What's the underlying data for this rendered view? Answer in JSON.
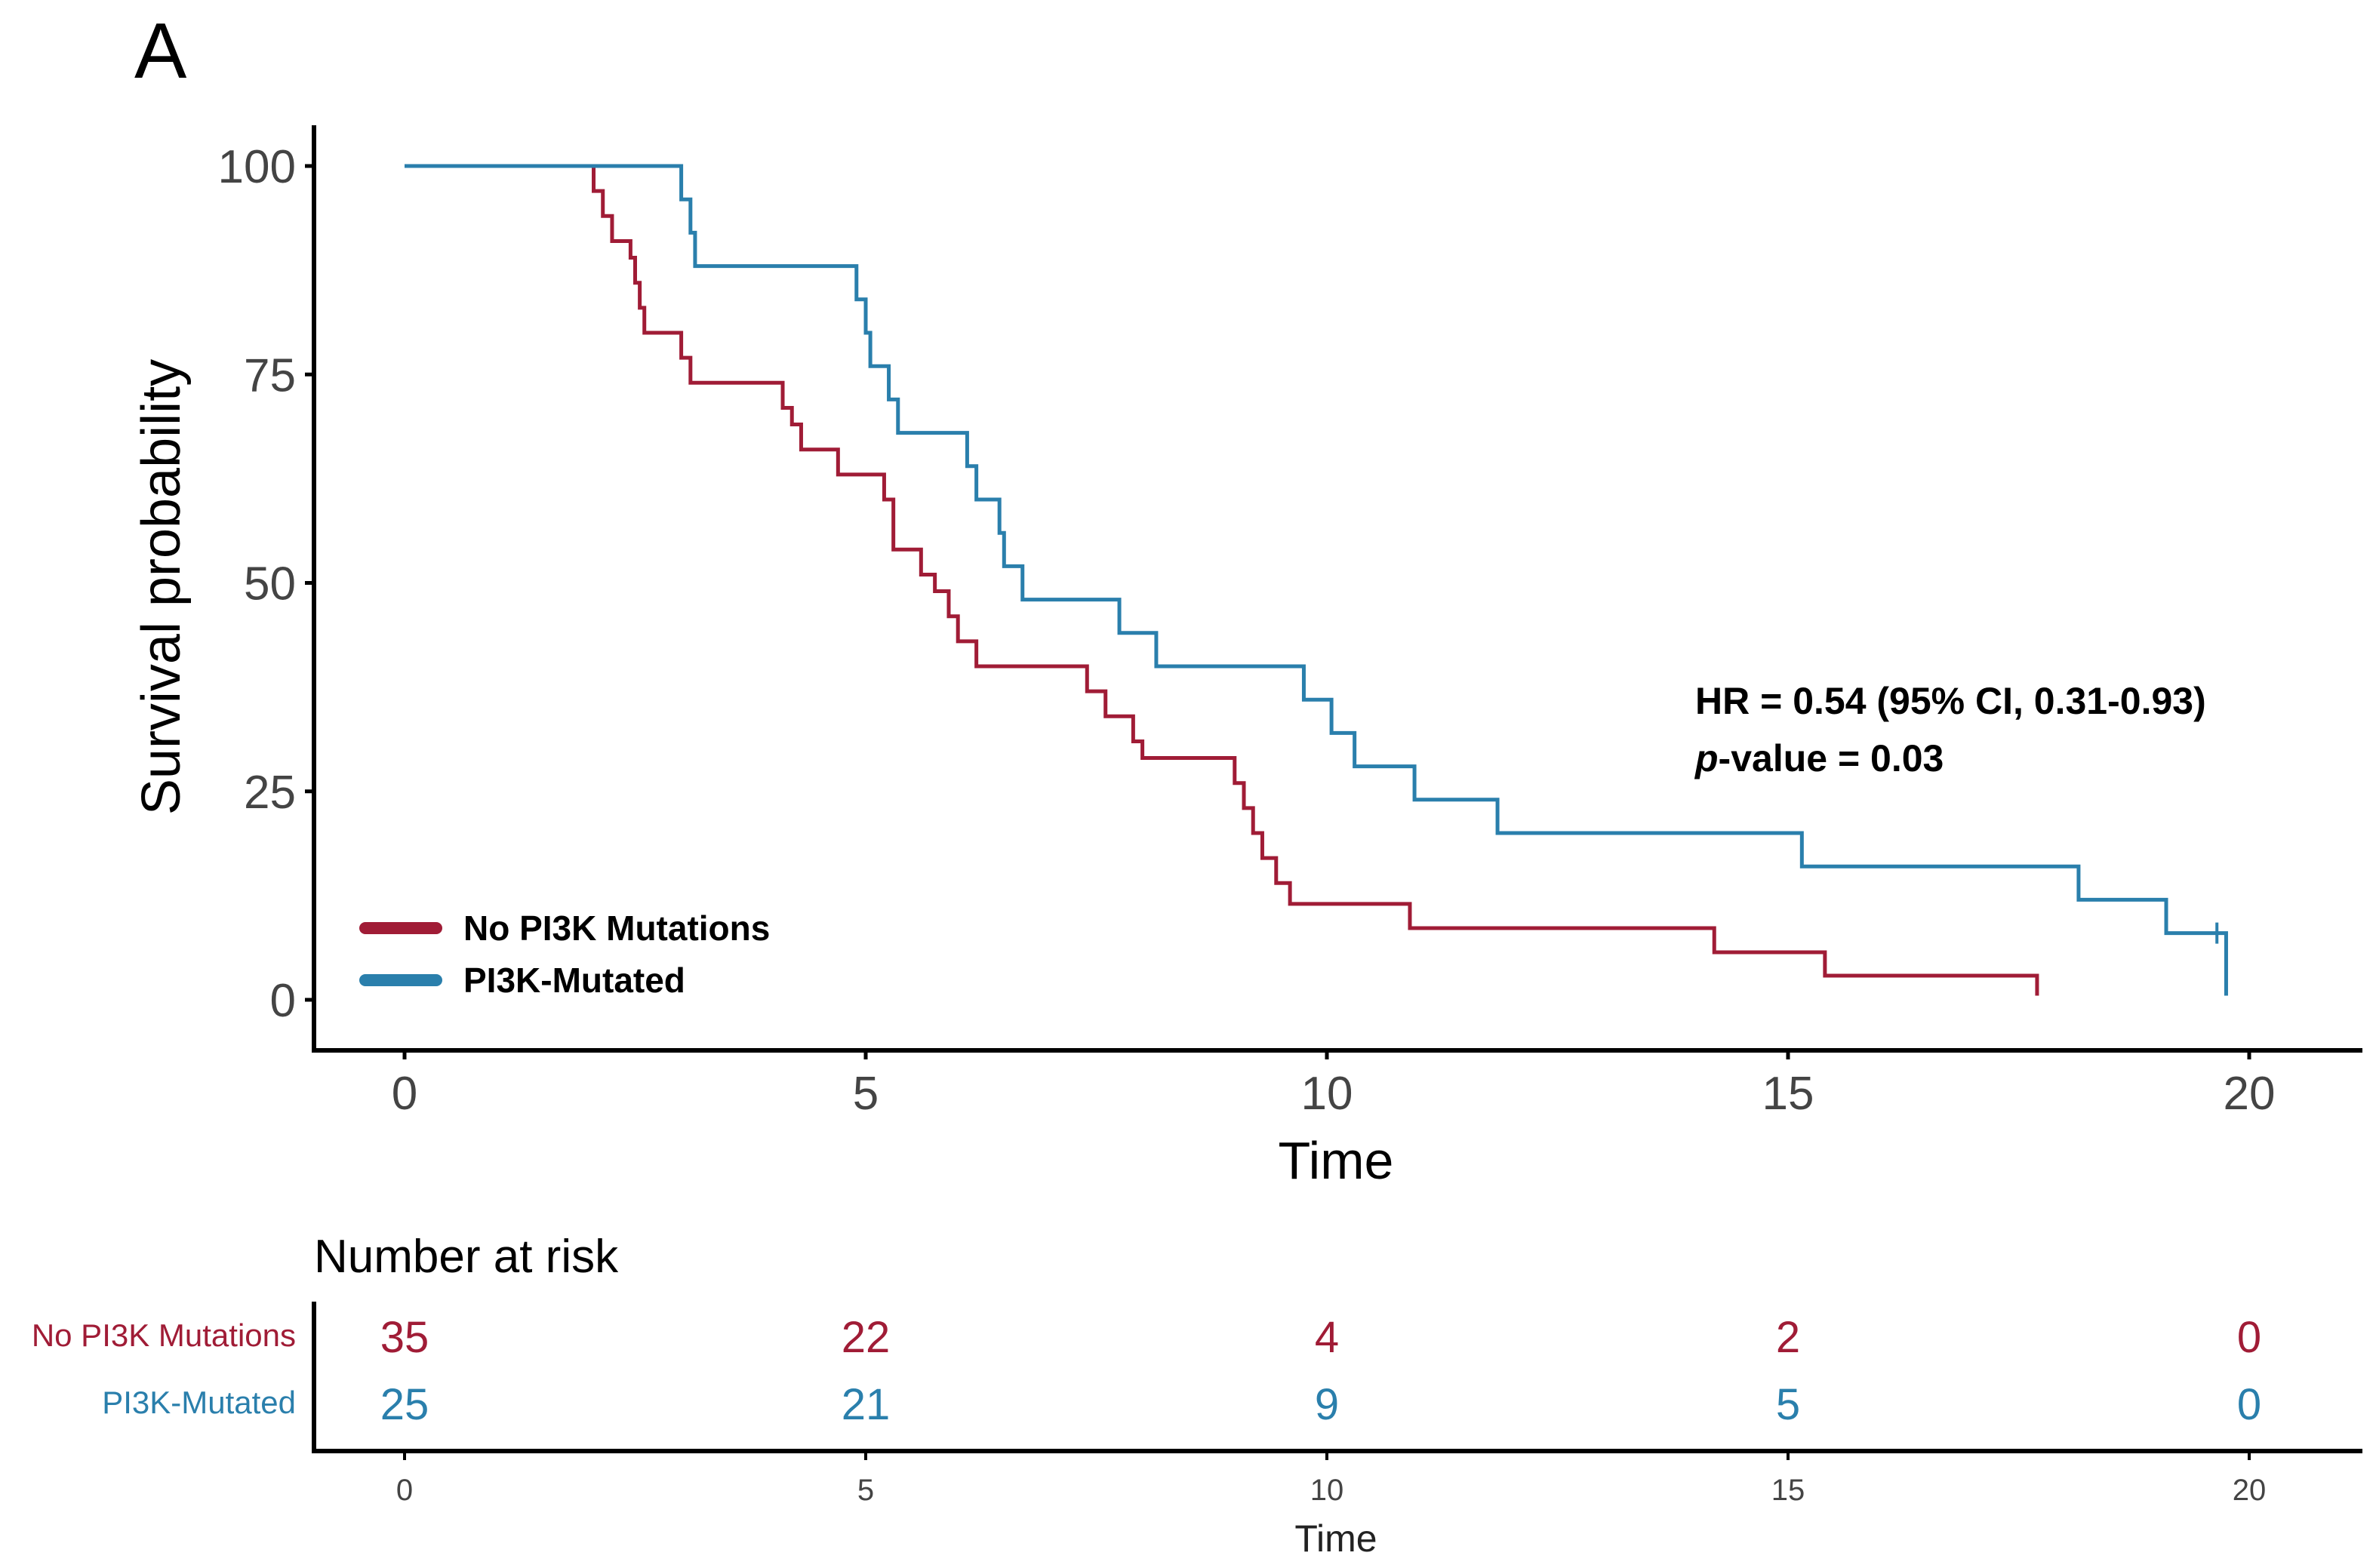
{
  "panel_label": "A",
  "chart_data": {
    "type": "km-survival",
    "xlabel": "Time",
    "ylabel": "Survival probability",
    "xlim": [
      0,
      20
    ],
    "ylim": [
      0,
      100
    ],
    "x_ticks": [
      "0",
      "5",
      "10",
      "15",
      "20"
    ],
    "y_ticks": [
      "0",
      "25",
      "50",
      "75",
      "100"
    ],
    "annotation": {
      "hr": "HR  = 0.54 (95% CI, 0.31-0.93)",
      "p_italic": "p",
      "p_rest": "-value = 0.03"
    },
    "legend": {
      "position": "bottom-left"
    },
    "series": [
      {
        "name": "No PI3K Mutations",
        "color": "#a01c36",
        "steps": [
          [
            0,
            100
          ],
          [
            1.95,
            100
          ],
          [
            2.05,
            97
          ],
          [
            2.15,
            94
          ],
          [
            2.25,
            91
          ],
          [
            2.45,
            89
          ],
          [
            2.5,
            86
          ],
          [
            2.55,
            83
          ],
          [
            2.6,
            80
          ],
          [
            3.0,
            77
          ],
          [
            3.1,
            74
          ],
          [
            4.1,
            71
          ],
          [
            4.2,
            69
          ],
          [
            4.3,
            66
          ],
          [
            4.7,
            63
          ],
          [
            5.2,
            60
          ],
          [
            5.3,
            57
          ],
          [
            5.3,
            54
          ],
          [
            5.6,
            51
          ],
          [
            5.75,
            49
          ],
          [
            5.9,
            46
          ],
          [
            6.0,
            43
          ],
          [
            6.2,
            40
          ],
          [
            7.4,
            37
          ],
          [
            7.6,
            34
          ],
          [
            7.9,
            31
          ],
          [
            8.0,
            29
          ],
          [
            9.0,
            26
          ],
          [
            9.1,
            23
          ],
          [
            9.2,
            20
          ],
          [
            9.3,
            17
          ],
          [
            9.45,
            14
          ],
          [
            9.6,
            11.5
          ],
          [
            10.9,
            8.6
          ],
          [
            14.2,
            5.7
          ],
          [
            15.4,
            2.9
          ],
          [
            17.7,
            2.9
          ],
          [
            17.7,
            0.5
          ]
        ]
      },
      {
        "name": "PI3K-Mutated",
        "color": "#2a7fac",
        "steps": [
          [
            0,
            100
          ],
          [
            2.95,
            100
          ],
          [
            3.0,
            96
          ],
          [
            3.1,
            92
          ],
          [
            3.15,
            88
          ],
          [
            4.75,
            88
          ],
          [
            4.9,
            84
          ],
          [
            5.0,
            80
          ],
          [
            5.05,
            76
          ],
          [
            5.25,
            72
          ],
          [
            5.35,
            68
          ],
          [
            6.1,
            64
          ],
          [
            6.2,
            60
          ],
          [
            6.45,
            56
          ],
          [
            6.5,
            52
          ],
          [
            6.7,
            48
          ],
          [
            7.75,
            44
          ],
          [
            8.15,
            40
          ],
          [
            9.75,
            36
          ],
          [
            10.05,
            32
          ],
          [
            10.3,
            28
          ],
          [
            10.95,
            24
          ],
          [
            11.85,
            20
          ],
          [
            15.15,
            16
          ],
          [
            18.15,
            12
          ],
          [
            19.1,
            8
          ],
          [
            19.75,
            8
          ],
          [
            19.75,
            0.5
          ]
        ],
        "censor": [
          19.65,
          8
        ]
      }
    ],
    "risk_table": {
      "title": "Number at risk",
      "xlabel": "Time",
      "times": [
        "0",
        "5",
        "10",
        "15",
        "20"
      ],
      "rows": [
        {
          "name": "No PI3K Mutations",
          "color": "#a01c36",
          "values": [
            "35",
            "22",
            "4",
            "2",
            "0"
          ]
        },
        {
          "name": "PI3K-Mutated",
          "color": "#2a7fac",
          "values": [
            "25",
            "21",
            "9",
            "5",
            "0"
          ]
        }
      ]
    }
  }
}
